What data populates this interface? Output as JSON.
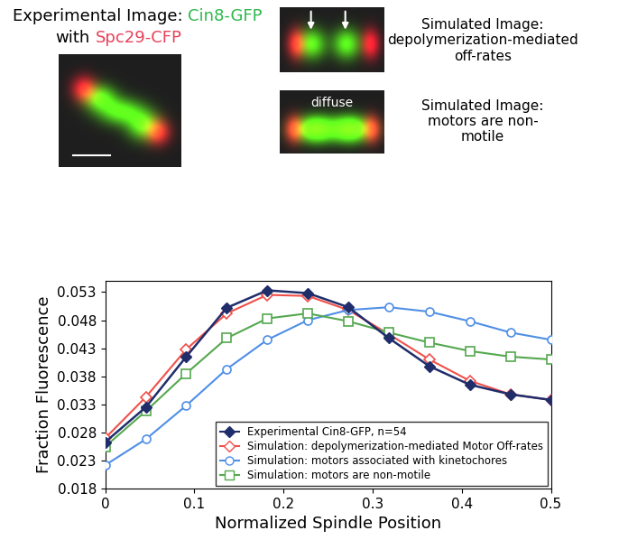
{
  "chart_data": {
    "type": "line",
    "x_label": "Normalized Spindle Position",
    "y_label": "Fraction Fluorescence",
    "xlim": [
      0,
      0.5
    ],
    "xticks": [
      0,
      0.1,
      0.2,
      0.3,
      0.4,
      0.5
    ],
    "ylim": [
      0.018,
      0.055
    ],
    "yticks": [
      0.018,
      0.023,
      0.028,
      0.033,
      0.038,
      0.043,
      0.048,
      0.053
    ],
    "legend": "lower right",
    "x": [
      0,
      0.0455,
      0.0909,
      0.1364,
      0.1818,
      0.2273,
      0.2727,
      0.3182,
      0.3636,
      0.4091,
      0.4545,
      0.5
    ],
    "series": [
      {
        "name": "Experimental Cin8-GFP, n=54",
        "color": "#1f2d6b",
        "marker": "filled_diamond",
        "values": [
          0.0263,
          0.0325,
          0.0415,
          0.0502,
          0.0533,
          0.0528,
          0.0503,
          0.0448,
          0.0398,
          0.0365,
          0.0348,
          0.0338
        ],
        "errors": [
          0.0004,
          0.0004,
          0.0004,
          0.0004,
          0.0004,
          0.0004,
          0.0004,
          0.0004,
          0.0004,
          0.0004,
          0.0005,
          0.0005
        ]
      },
      {
        "name": "Simulation: depolymerization-mediated Motor Off-rates",
        "color": "#f0504a",
        "marker": "open_diamond",
        "values": [
          0.027,
          0.0343,
          0.0428,
          0.0492,
          0.0525,
          0.0523,
          0.0498,
          0.0455,
          0.041,
          0.0372,
          0.0348,
          0.0338
        ]
      },
      {
        "name": "Simulation: motors associated with kinetochores",
        "color": "#4f8fe6",
        "marker": "open_circle",
        "values": [
          0.0222,
          0.0268,
          0.0328,
          0.0393,
          0.0445,
          0.048,
          0.0498,
          0.0503,
          0.0495,
          0.0478,
          0.0458,
          0.0445
        ]
      },
      {
        "name": "Simulation: motors are non-motile",
        "color": "#55a84f",
        "marker": "open_square",
        "values": [
          0.0255,
          0.0318,
          0.0385,
          0.0448,
          0.0483,
          0.0492,
          0.0478,
          0.0458,
          0.044,
          0.0425,
          0.0415,
          0.041
        ]
      }
    ]
  },
  "image_panels": {
    "experimental": {
      "title_lines": [
        [
          {
            "text": "Experimental Image:",
            "color": "#000000"
          },
          {
            "text": "Cin8-GFP",
            "color": "#2db84a"
          }
        ],
        [
          {
            "text": "with",
            "color": "#000000"
          },
          {
            "text": "Spc29-CFP",
            "color": "#e8405a"
          }
        ]
      ]
    },
    "simulated_top": {
      "caption": "Simulated Image:\ndepolymerization-mediated\noff-rates"
    },
    "simulated_bottom": {
      "caption": "Simulated Image:\nmotors are non-\nmotile",
      "overlay": "diffuse"
    }
  }
}
